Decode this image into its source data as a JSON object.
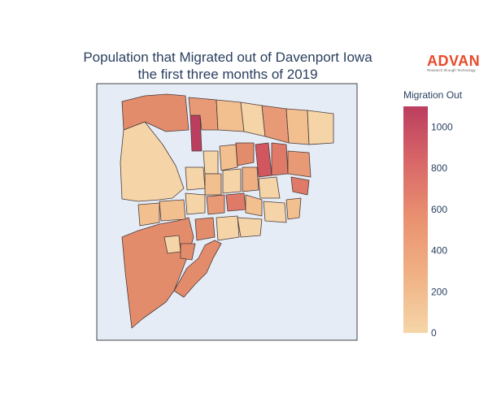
{
  "title_line1": "Population that Migrated out of Davenport Iowa",
  "title_line2": "the first three months of 2019",
  "logo": {
    "word": "ADVAN",
    "tagline": "Research through Technology"
  },
  "colors": {
    "geo_bg": "#e5ecf6",
    "border": "#444444",
    "scale_low": "#f5d6a8",
    "scale_mid": "#ea9270",
    "scale_high": "#bb3e5f"
  },
  "chart_data": {
    "type": "choropleth",
    "colorbar": {
      "title": "Migration Out",
      "range": [
        0,
        1100
      ],
      "ticks": [
        "0",
        "200",
        "400",
        "600",
        "800",
        "1000"
      ],
      "tick_values": [
        0,
        200,
        400,
        600,
        800,
        1000
      ]
    }
  }
}
